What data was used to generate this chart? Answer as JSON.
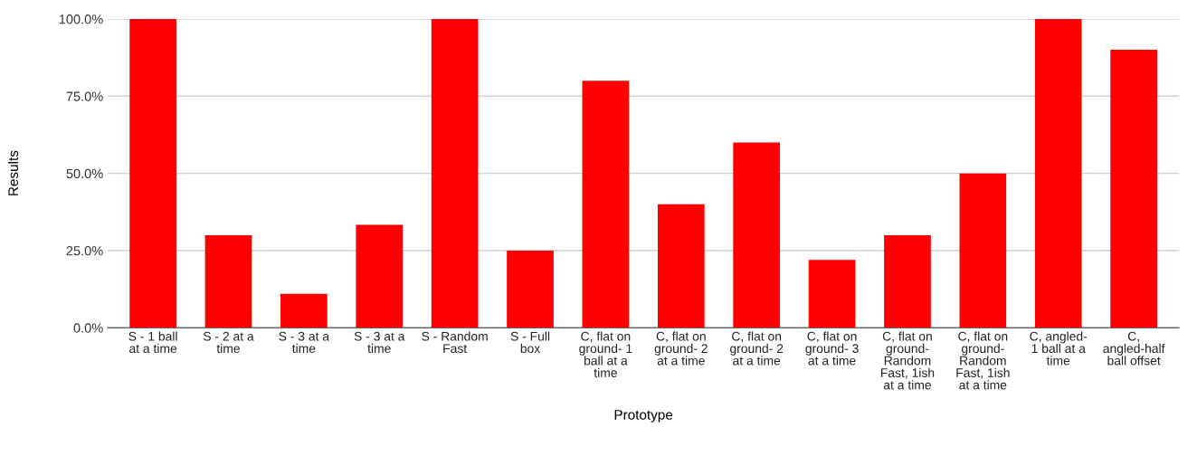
{
  "chart_data": {
    "type": "bar",
    "xlabel": "Prototype",
    "ylabel": "Results",
    "categories": [
      "S - 1 ball at a time",
      "S - 2 at a time",
      "S - 3 at a time",
      "S - 3 at a time",
      "S - Random Fast",
      "S - Full box",
      "C, flat on ground- 1 ball at a time",
      "C, flat on ground- 2 at a time",
      "C, flat on ground- 2 at a time",
      "C, flat on ground- 3 at a time",
      "C, flat on ground-Random Fast, 1ish at a time",
      "C, flat on ground-Random Fast, 1ish at a time",
      "C, angled- 1 ball at a time",
      "C, angled-half ball offset"
    ],
    "values": [
      100,
      30,
      11,
      33.3,
      100,
      25,
      80,
      40,
      60,
      22,
      30,
      50,
      100,
      90
    ],
    "color": "#ff0000",
    "ylim": [
      0,
      100
    ],
    "yticks": [
      {
        "value": 0,
        "label": "0.0%"
      },
      {
        "value": 25,
        "label": "25.0%"
      },
      {
        "value": 50,
        "label": "50.0%"
      },
      {
        "value": 75,
        "label": "75.0%"
      },
      {
        "value": 100,
        "label": "100.0%"
      }
    ],
    "grid": "y"
  }
}
